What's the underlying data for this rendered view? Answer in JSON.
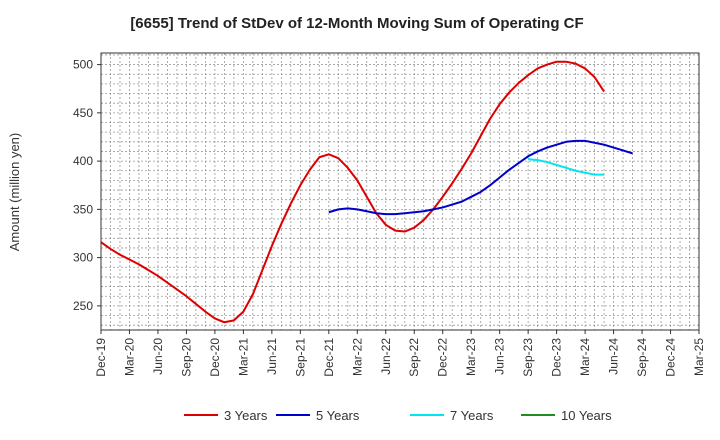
{
  "chart_data": {
    "type": "line",
    "title": "[6655]  Trend of StDev of 12-Month Moving Sum of Operating CF",
    "xlabel": "",
    "ylabel": "Amount (million yen)",
    "ylim": [
      225,
      512
    ],
    "yticks": [
      250,
      300,
      350,
      400,
      450,
      500
    ],
    "grid": true,
    "legend_position": "bottom",
    "x_tick_labels": [
      "Dec-19",
      "Mar-20",
      "Jun-20",
      "Sep-20",
      "Dec-20",
      "Mar-21",
      "Jun-21",
      "Sep-21",
      "Dec-21",
      "Mar-22",
      "Jun-22",
      "Sep-22",
      "Dec-22",
      "Mar-23",
      "Jun-23",
      "Sep-23",
      "Dec-23",
      "Mar-24",
      "Jun-24",
      "Sep-24",
      "Dec-24",
      "Mar-25"
    ],
    "x_months_total": 63,
    "series": [
      {
        "name": "3 Years",
        "color": "#dd0000",
        "start_month_index": 0,
        "values": [
          316,
          309,
          303,
          298,
          293,
          287,
          281,
          274,
          267,
          260,
          252,
          244,
          237,
          233,
          235,
          244,
          262,
          287,
          312,
          335,
          356,
          375,
          391,
          404,
          407,
          403,
          393,
          380,
          363,
          346,
          334,
          328,
          327,
          331,
          339,
          350,
          363,
          377,
          392,
          408,
          426,
          444,
          459,
          471,
          481,
          489,
          496,
          500,
          503,
          503,
          501,
          496,
          487,
          472
        ]
      },
      {
        "name": "5 Years",
        "color": "#0000cc",
        "start_month_index": 24,
        "values": [
          347,
          350,
          351,
          350,
          348,
          346,
          345,
          345,
          346,
          347,
          348,
          350,
          352,
          355,
          358,
          363,
          368,
          375,
          383,
          391,
          398,
          405,
          410,
          414,
          417,
          420,
          421,
          421,
          419,
          417,
          414,
          411,
          408
        ]
      },
      {
        "name": "7 Years",
        "color": "#00e5ee",
        "start_month_index": 45,
        "values": [
          402,
          401,
          399,
          396,
          393,
          390,
          388,
          386,
          386
        ]
      },
      {
        "name": "10 Years",
        "color": "#228b22",
        "start_month_index": 0,
        "values": []
      }
    ]
  }
}
